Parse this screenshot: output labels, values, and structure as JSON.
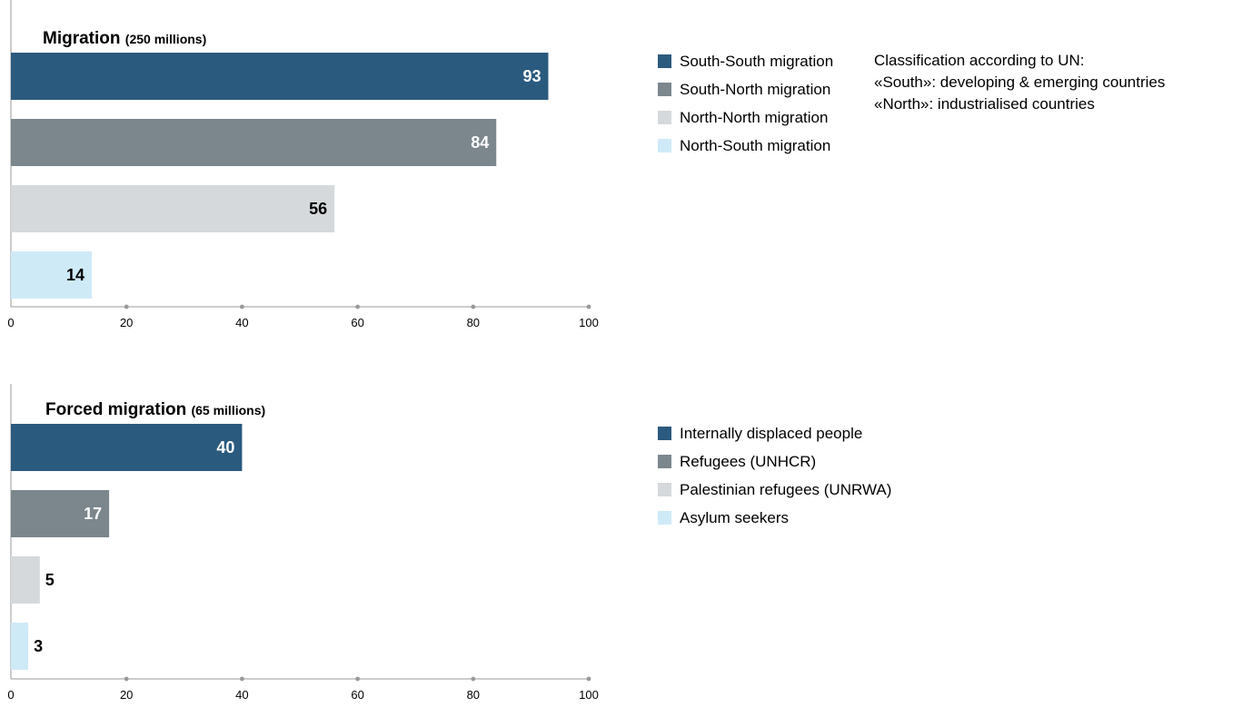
{
  "chart_data": [
    {
      "type": "bar",
      "orientation": "horizontal",
      "title": "Migration",
      "subtitle": "(250 millions)",
      "categories": [
        "South-South migration",
        "South-North migration",
        "North-North migration",
        "North-South migration"
      ],
      "values": [
        93,
        84,
        56,
        14
      ],
      "value_labels": [
        "93",
        "84",
        "56",
        "14"
      ],
      "colors": [
        "#2b5a7f",
        "#7b878d",
        "#d5d9db",
        "#cfeaf7"
      ],
      "label_colors": [
        "#ffffff",
        "#ffffff",
        "#000000",
        "#000000"
      ],
      "xlim": [
        0,
        100
      ],
      "xticks": [
        0,
        20,
        40,
        60,
        80,
        100
      ],
      "xtick_labels": [
        "0",
        "20",
        "40",
        "60",
        "80",
        "100"
      ],
      "grid": false,
      "legend": "right"
    },
    {
      "type": "bar",
      "orientation": "horizontal",
      "title": "Forced migration",
      "subtitle": "(65 millions)",
      "categories": [
        "Internally displaced people",
        "Refugees (UNHCR)",
        "Palestinian refugees (UNRWA)",
        "Asylum seekers"
      ],
      "values": [
        40,
        17,
        5,
        3
      ],
      "value_labels": [
        "40",
        "17",
        "5",
        "3"
      ],
      "colors": [
        "#2b5a7f",
        "#7b878d",
        "#d5d9db",
        "#cfeaf7"
      ],
      "label_colors": [
        "#ffffff",
        "#ffffff",
        "#000000",
        "#000000"
      ],
      "xlim": [
        0,
        100
      ],
      "xticks": [
        0,
        20,
        40,
        60,
        80,
        100
      ],
      "xtick_labels": [
        "0",
        "20",
        "40",
        "60",
        "80",
        "100"
      ],
      "grid": false,
      "legend": "right"
    }
  ],
  "note": {
    "lines": [
      "Classification according to UN:",
      "«South»: developing & emerging countries",
      "«North»: industrialised countries"
    ]
  }
}
